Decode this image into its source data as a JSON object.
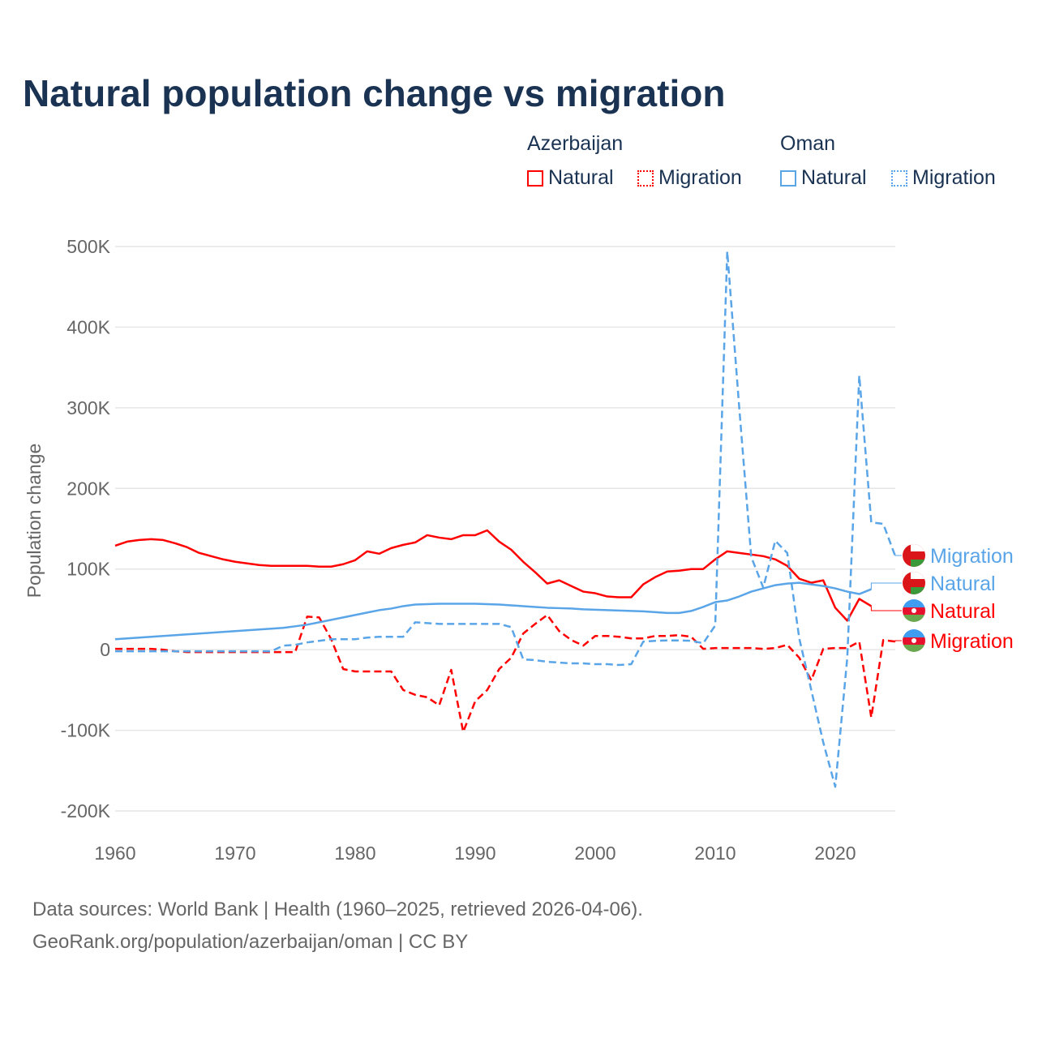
{
  "title": "Natural population change vs migration",
  "legend": {
    "groups": [
      {
        "name": "Azerbaijan",
        "color": "#ff0000",
        "items": [
          "Natural",
          "Migration"
        ]
      },
      {
        "name": "Oman",
        "color": "#5aa5e8",
        "items": [
          "Natural",
          "Migration"
        ]
      }
    ]
  },
  "footer": {
    "line1": "Data sources: World Bank | Health (1960–2025, retrieved 2026-04-06).",
    "line2": "GeoRank.org/population/azerbaijan/oman | CC BY"
  },
  "chart_data": {
    "type": "line",
    "title": "Natural population change vs migration",
    "xlabel": "",
    "ylabel": "Population change",
    "xlim": [
      1960,
      2025
    ],
    "ylim": [
      -200000,
      500000
    ],
    "yticks": [
      {
        "v": 500000,
        "label": "500K"
      },
      {
        "v": 400000,
        "label": "400K"
      },
      {
        "v": 300000,
        "label": "300K"
      },
      {
        "v": 200000,
        "label": "200K"
      },
      {
        "v": 100000,
        "label": "100K"
      },
      {
        "v": 0,
        "label": "0"
      },
      {
        "v": -100000,
        "label": "-100K"
      },
      {
        "v": -200000,
        "label": "-200K"
      }
    ],
    "xticks": [
      {
        "v": 1960,
        "label": "1960"
      },
      {
        "v": 1970,
        "label": "1970"
      },
      {
        "v": 1980,
        "label": "1980"
      },
      {
        "v": 1990,
        "label": "1990"
      },
      {
        "v": 2000,
        "label": "2000"
      },
      {
        "v": 2010,
        "label": "2010"
      },
      {
        "v": 2020,
        "label": "2020"
      }
    ],
    "grid": true,
    "x_start": 1960,
    "units": "thousands",
    "series": [
      {
        "name": "Azerbaijan Natural",
        "label": "Natural",
        "color": "#ff0000",
        "dashed": false,
        "flag": "azerbaijan",
        "values": [
          129,
          134,
          136,
          137,
          136,
          132,
          127,
          120,
          116,
          112,
          109,
          107,
          105,
          104,
          104,
          104,
          104,
          103,
          103,
          106,
          111,
          122,
          119,
          126,
          130,
          133,
          142,
          139,
          137,
          142,
          142,
          148,
          134,
          124,
          109,
          96,
          82,
          86,
          79,
          72,
          70,
          66,
          65,
          65,
          81,
          90,
          97,
          98,
          100,
          100,
          112,
          122,
          120,
          118,
          116,
          112,
          104,
          88,
          83,
          86,
          52,
          36,
          63,
          54
        ]
      },
      {
        "name": "Azerbaijan Migration",
        "label": "Migration",
        "color": "#ff0000",
        "dashed": true,
        "flag": "azerbaijan",
        "values": [
          1,
          1,
          1,
          1,
          0,
          -2,
          -3,
          -3,
          -3,
          -3,
          -3,
          -3,
          -3,
          -3,
          -3,
          -3,
          41,
          40,
          13,
          -24,
          -27,
          -27,
          -27,
          -27,
          -50,
          -56,
          -59,
          -69,
          -25,
          -102,
          -64,
          -50,
          -24,
          -10,
          20,
          32,
          43,
          23,
          12,
          5,
          17,
          17,
          16,
          14,
          14,
          17,
          17,
          18,
          16,
          1,
          2,
          2,
          2,
          2,
          1,
          2,
          6,
          -10,
          -38,
          1,
          2,
          2,
          10,
          -84,
          12,
          10
        ]
      },
      {
        "name": "Oman Natural",
        "label": "Natural",
        "color": "#5aa5e8",
        "dashed": false,
        "flag": "oman",
        "values": [
          13,
          14,
          15,
          16,
          17,
          18,
          19,
          20,
          21,
          22,
          23,
          24,
          25,
          26,
          27,
          29,
          31,
          34,
          37,
          40,
          43,
          46,
          49,
          51,
          54,
          56,
          56.5,
          57,
          57,
          57,
          57,
          56.5,
          56,
          55,
          54,
          53,
          52,
          51.5,
          51,
          50,
          49.5,
          49,
          48.5,
          48,
          47.5,
          46.5,
          45.5,
          45.5,
          48,
          53,
          59,
          61,
          66,
          72,
          76,
          80,
          82,
          83,
          81,
          79,
          76,
          72,
          69,
          75
        ]
      },
      {
        "name": "Oman Migration",
        "label": "Migration",
        "color": "#5aa5e8",
        "dashed": true,
        "flag": "oman",
        "values": [
          -2,
          -2,
          -2,
          -2,
          -2,
          -2,
          -2,
          -2,
          -2,
          -2,
          -2,
          -2,
          -2,
          -2,
          5,
          6,
          9,
          11,
          13,
          13,
          13,
          15,
          16,
          16,
          16,
          34,
          33,
          32,
          32,
          32,
          32,
          32,
          32,
          28,
          -12,
          -13,
          -15,
          -16,
          -17,
          -17,
          -18,
          -18,
          -19,
          -18,
          10,
          11,
          11.5,
          11.5,
          11,
          8,
          30,
          494,
          300,
          115,
          77,
          135,
          120,
          14,
          -50,
          -115,
          -170,
          -10,
          340,
          158,
          156,
          116
        ]
      }
    ]
  }
}
